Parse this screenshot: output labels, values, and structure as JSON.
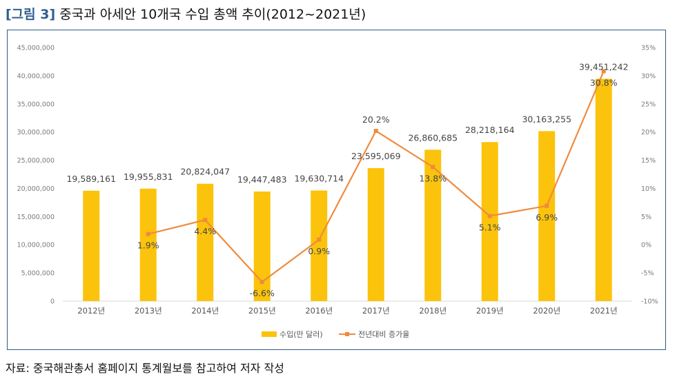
{
  "figure": {
    "label": "[그림 3]",
    "title": "중국과 아세안 10개국 수입 총액 추이(2012~2021년)"
  },
  "source_note": "자료: 중국해관총서 홈페이지 통계월보를 참고하여 저자 작성",
  "chart_data": {
    "type": "bar",
    "categories": [
      "2012년",
      "2013년",
      "2014년",
      "2015년",
      "2016년",
      "2017년",
      "2018년",
      "2019년",
      "2020년",
      "2021년"
    ],
    "series": [
      {
        "name": "수입(만 달러)",
        "type": "bar",
        "axis": "left",
        "color": "#fbc30b",
        "values": [
          19589161,
          19955831,
          20824047,
          19447483,
          19630714,
          23595069,
          26860685,
          28218164,
          30163255,
          39451242
        ],
        "labels": [
          "19,589,161",
          "19,955,831",
          "20,824,047",
          "19,447,483",
          "19,630,714",
          "23,595,069",
          "26,860,685",
          "28,218,164",
          "30,163,255",
          "39,451,242"
        ]
      },
      {
        "name": "전년대비 증가율",
        "type": "line",
        "axis": "right",
        "color": "#f08a3c",
        "values": [
          null,
          1.9,
          4.4,
          -6.6,
          0.9,
          20.2,
          13.8,
          5.1,
          6.9,
          30.8
        ],
        "labels": [
          "",
          "1.9%",
          "4.4%",
          "-6.6%",
          "0.9%",
          "20.2%",
          "13.8%",
          "5.1%",
          "6.9%",
          "30.8%"
        ]
      }
    ],
    "y_left": {
      "ylim": [
        0,
        45000000
      ],
      "ticks": [
        0,
        5000000,
        10000000,
        15000000,
        20000000,
        25000000,
        30000000,
        35000000,
        40000000,
        45000000
      ],
      "tick_labels": [
        "0",
        "5,000,000",
        "10,000,000",
        "15,000,000",
        "20,000,000",
        "25,000,000",
        "30,000,000",
        "35,000,000",
        "40,000,000",
        "45,000,000"
      ]
    },
    "y_right": {
      "ylim": [
        -10,
        35
      ],
      "ticks": [
        -10,
        -5,
        0,
        5,
        10,
        15,
        20,
        25,
        30,
        35
      ],
      "tick_labels": [
        "-10%",
        "-5%",
        "0%",
        "5%",
        "10%",
        "15%",
        "20%",
        "25%",
        "30%",
        "35%"
      ]
    },
    "grid": false,
    "legend": "bottom-center"
  }
}
